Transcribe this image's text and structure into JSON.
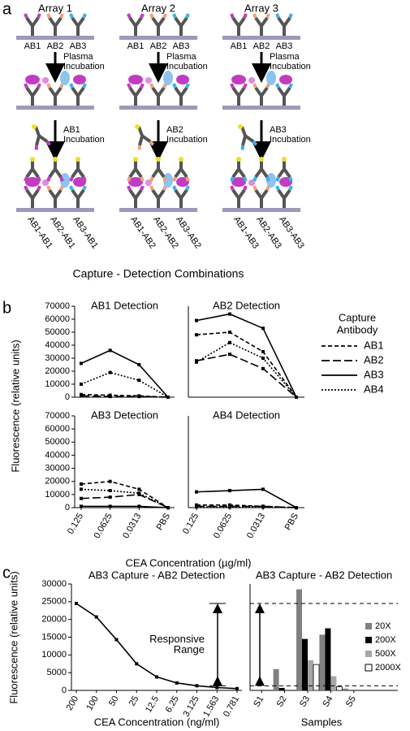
{
  "panel_a": {
    "label": "a",
    "arrays": [
      {
        "title": "Array 1",
        "capture": [
          "AB1",
          "AB2",
          "AB3"
        ],
        "plasma": [
          "Plasma",
          "Incubation"
        ],
        "detection": [
          "AB1",
          "Incubation"
        ],
        "combinations": [
          "AB1-AB1",
          "AB2-AB1",
          "AB3-AB1"
        ]
      },
      {
        "title": "Array 2",
        "capture": [
          "AB1",
          "AB2",
          "AB3"
        ],
        "plasma": [
          "Plasma",
          "Incubation"
        ],
        "detection": [
          "AB2",
          "Incubation"
        ],
        "combinations": [
          "AB1-AB2",
          "AB2-AB2",
          "AB3-AB2"
        ]
      },
      {
        "title": "Array 3",
        "capture": [
          "AB1",
          "AB2",
          "AB3"
        ],
        "plasma": [
          "Plasma",
          "Incubation"
        ],
        "detection": [
          "AB3",
          "Incubation"
        ],
        "combinations": [
          "AB1-AB3",
          "AB2-AB3",
          "AB3-AB3"
        ]
      }
    ],
    "caption": "Capture - Detection Combinations"
  },
  "panel_b": {
    "label": "b",
    "y_label": "Fluorescence (relative units)",
    "x_label": "CEA Concentration (µg/ml)",
    "legend": {
      "title": [
        "Capture",
        "Antibody"
      ],
      "entries": [
        {
          "name": "AB1",
          "dash": "5,3"
        },
        {
          "name": "AB2",
          "dash": "10,4"
        },
        {
          "name": "AB3",
          "dash": "none"
        },
        {
          "name": "AB4",
          "dash": "2,2"
        }
      ]
    }
  },
  "panel_c": {
    "label": "c"
  },
  "chart_data": [
    {
      "type": "line",
      "title": "AB1 Detection",
      "series": [
        {
          "values": [
            2000,
            1500,
            1000,
            0
          ]
        },
        {
          "values": [
            1000,
            500,
            500,
            0
          ]
        },
        {
          "values": [
            26000,
            36000,
            25000,
            0
          ]
        },
        {
          "values": [
            10000,
            19000,
            13000,
            0
          ]
        }
      ],
      "ylim": [
        0,
        70000
      ],
      "yticks": [
        0,
        10000,
        20000,
        30000,
        40000,
        50000,
        60000,
        70000
      ]
    },
    {
      "type": "line",
      "title": "AB2 Detection",
      "series": [
        {
          "values": [
            48000,
            50000,
            35000,
            0
          ]
        },
        {
          "values": [
            28000,
            33000,
            22000,
            0
          ]
        },
        {
          "values": [
            59000,
            64000,
            53000,
            0
          ]
        },
        {
          "values": [
            27000,
            42000,
            30000,
            0
          ]
        }
      ],
      "ylim": [
        0,
        70000
      ]
    },
    {
      "type": "line",
      "title": "AB3 Detection",
      "categories": [
        "0.125",
        "0.0625",
        "0.0313",
        "PBS"
      ],
      "series": [
        {
          "values": [
            18000,
            20000,
            14000,
            0
          ]
        },
        {
          "values": [
            7000,
            8000,
            10000,
            0
          ]
        },
        {
          "values": [
            1000,
            1000,
            1000,
            0
          ]
        },
        {
          "values": [
            14000,
            13000,
            11000,
            0
          ]
        }
      ],
      "ylim": [
        0,
        70000
      ],
      "yticks": [
        0,
        10000,
        20000,
        30000,
        40000,
        50000,
        60000,
        70000
      ]
    },
    {
      "type": "line",
      "title": "AB4 Detection",
      "categories": [
        "0.125",
        "0.0625",
        "0.0313",
        "PBS"
      ],
      "series": [
        {
          "values": [
            2000,
            2000,
            1000,
            0
          ]
        },
        {
          "values": [
            1000,
            1000,
            1000,
            0
          ]
        },
        {
          "values": [
            12000,
            13000,
            14000,
            0
          ]
        },
        {
          "values": [
            500,
            500,
            500,
            0
          ]
        }
      ],
      "ylim": [
        0,
        70000
      ]
    },
    {
      "type": "line",
      "title": "AB3 Capture - AB2 Detection",
      "x_label": "CEA Concentration (ng/ml)",
      "y_label": "Fluorescence (relative units)",
      "categories": [
        "200",
        "100",
        "50",
        "25",
        "12.5",
        "6.25",
        "3.125",
        "1.563",
        "0.781"
      ],
      "values": [
        24500,
        20700,
        14300,
        7500,
        3800,
        2100,
        1300,
        800,
        500
      ],
      "ylim": [
        0,
        30000
      ],
      "yticks": [
        0,
        5000,
        10000,
        15000,
        20000,
        25000,
        30000
      ],
      "annotation": [
        "Responsive",
        "Range"
      ],
      "range": [
        1300,
        24500
      ]
    },
    {
      "type": "bar",
      "title": "AB3 Capture - AB2 Detection",
      "x_label": "Samples",
      "categories": [
        "S1",
        "S2",
        "S3",
        "S4",
        "S5"
      ],
      "series": [
        {
          "name": "20X",
          "color": "#808080",
          "values": [
            0,
            6000,
            28500,
            15700,
            500
          ]
        },
        {
          "name": "200X",
          "color": "#000000",
          "values": [
            0,
            700,
            14500,
            17500,
            100
          ]
        },
        {
          "name": "500X",
          "color": "#a6a6a6",
          "values": [
            0,
            0,
            8500,
            4000,
            0
          ]
        },
        {
          "name": "2000X",
          "color": "#ffffff",
          "values": [
            0,
            0,
            7300,
            1000,
            0
          ]
        }
      ],
      "ylim": [
        0,
        30000
      ],
      "hlines": [
        24500,
        1300
      ]
    }
  ]
}
